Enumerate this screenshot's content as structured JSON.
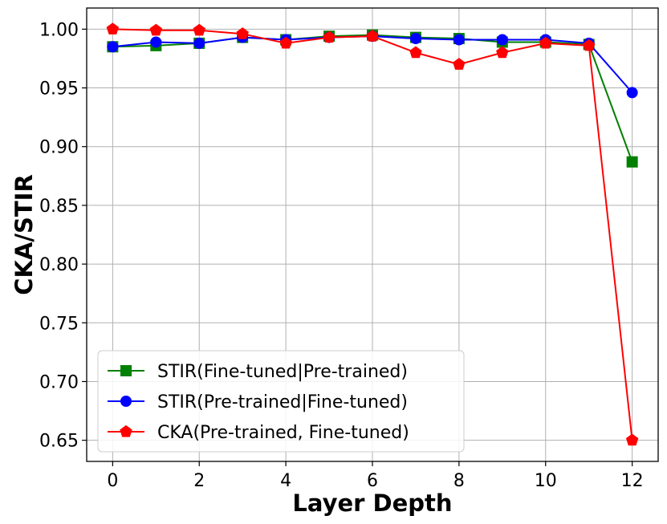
{
  "chart_data": {
    "type": "line",
    "title": "",
    "xlabel": "Layer Depth",
    "ylabel": "CKA/STIR",
    "x": [
      0,
      1,
      2,
      3,
      4,
      5,
      6,
      7,
      8,
      9,
      10,
      11,
      12
    ],
    "xlim": [
      -0.6,
      12.6
    ],
    "ylim": [
      0.632,
      1.018
    ],
    "xticks": [
      0,
      2,
      4,
      6,
      8,
      10,
      12
    ],
    "xtick_labels": [
      "0",
      "2",
      "4",
      "6",
      "8",
      "10",
      "12"
    ],
    "yticks": [
      0.65,
      0.7,
      0.75,
      0.8,
      0.85,
      0.9,
      0.95,
      1.0
    ],
    "ytick_labels": [
      "0.65",
      "0.70",
      "0.75",
      "0.80",
      "0.85",
      "0.90",
      "0.95",
      "1.00"
    ],
    "grid": true,
    "legend_position": "lower-left",
    "series": [
      {
        "name": "STIR(Fine-tuned|Pre-trained)",
        "color": "#008000",
        "marker": "square",
        "values": [
          0.985,
          0.986,
          0.988,
          0.993,
          0.991,
          0.994,
          0.995,
          0.993,
          0.992,
          0.989,
          0.989,
          0.987,
          0.887
        ]
      },
      {
        "name": "STIR(Pre-trained|Fine-tuned)",
        "color": "#0000ff",
        "marker": "circle",
        "values": [
          0.985,
          0.989,
          0.988,
          0.993,
          0.991,
          0.993,
          0.994,
          0.992,
          0.991,
          0.991,
          0.991,
          0.988,
          0.946
        ]
      },
      {
        "name": "CKA(Pre-trained, Fine-tuned)",
        "color": "#ff0000",
        "marker": "pentagon",
        "values": [
          1.0,
          0.999,
          0.999,
          0.996,
          0.988,
          0.993,
          0.994,
          0.98,
          0.97,
          0.98,
          0.988,
          0.986,
          0.65
        ]
      }
    ]
  }
}
